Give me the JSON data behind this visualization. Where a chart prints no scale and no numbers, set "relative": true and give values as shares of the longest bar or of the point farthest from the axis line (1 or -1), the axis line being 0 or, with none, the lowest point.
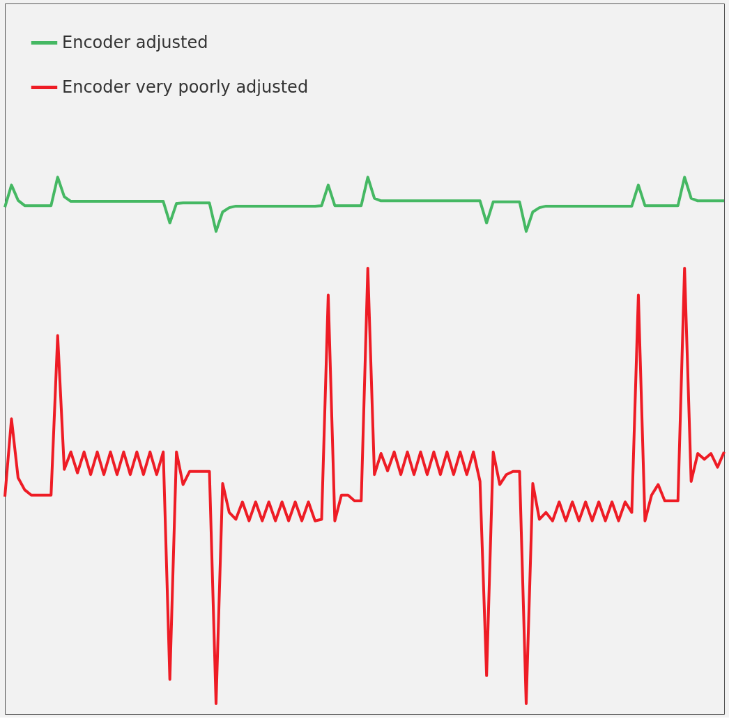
{
  "chart_data": {
    "type": "line",
    "relative": true,
    "legend": "top left",
    "categories": [
      null,
      null,
      null,
      null,
      null,
      null,
      null,
      null,
      null,
      null,
      null,
      null,
      null,
      null,
      null,
      null,
      null,
      null,
      null,
      null,
      null,
      null,
      null,
      null,
      null,
      null,
      null,
      null,
      null,
      null,
      null,
      null,
      null,
      null,
      null,
      null,
      null,
      null,
      null,
      null,
      null,
      null,
      null,
      null,
      null,
      null,
      null,
      null,
      null,
      null,
      null,
      null,
      null,
      null,
      null,
      null,
      null,
      null,
      null,
      null,
      null,
      null,
      null,
      null,
      null,
      null,
      null,
      null,
      null,
      null,
      null,
      null,
      null,
      null,
      null,
      null,
      null,
      null,
      null,
      null,
      null,
      null,
      null,
      null,
      null,
      null,
      null,
      null,
      null,
      null,
      null,
      null,
      null,
      null,
      null,
      null,
      null,
      null,
      null,
      null,
      null,
      null,
      null,
      null,
      null,
      null,
      null,
      null,
      null,
      null
    ],
    "series": [
      {
        "name": "Encoder adjusted",
        "color": "#45b863",
        "values": [
          0.943,
          0.985,
          0.956,
          0.946,
          0.946,
          0.946,
          0.946,
          0.946,
          1,
          0.963,
          0.954,
          0.954,
          0.954,
          0.954,
          0.954,
          0.954,
          0.954,
          0.954,
          0.954,
          0.954,
          0.954,
          0.954,
          0.954,
          0.954,
          0.954,
          0.913,
          0.95,
          0.951,
          0.951,
          0.951,
          0.951,
          0.951,
          0.897,
          0.934,
          0.942,
          0.945,
          0.945,
          0.945,
          0.945,
          0.945,
          0.945,
          0.945,
          0.945,
          0.945,
          0.945,
          0.945,
          0.945,
          0.945,
          0.946,
          0.985,
          0.946,
          0.946,
          0.946,
          0.946,
          0.946,
          1,
          0.96,
          0.955,
          0.955,
          0.955,
          0.955,
          0.955,
          0.955,
          0.955,
          0.955,
          0.955,
          0.955,
          0.955,
          0.955,
          0.955,
          0.955,
          0.955,
          0.955,
          0.913,
          0.953,
          0.953,
          0.953,
          0.953,
          0.953,
          0.897,
          0.934,
          0.942,
          0.945,
          0.945,
          0.945,
          0.945,
          0.945,
          0.945,
          0.945,
          0.945,
          0.945,
          0.945,
          0.945,
          0.945,
          0.945,
          0.945,
          0.985,
          0.946,
          0.946,
          0.946,
          0.946,
          0.946,
          0.946,
          1,
          0.96,
          0.955,
          0.955,
          0.955,
          0.955,
          0.955
        ]
      },
      {
        "name": "Encoder very poorly adjusted",
        "color": "#ee1c25",
        "values": [
          0.393,
          0.541,
          0.429,
          0.406,
          0.396,
          0.396,
          0.396,
          0.396,
          0.699,
          0.445,
          0.478,
          0.438,
          0.478,
          0.435,
          0.478,
          0.435,
          0.478,
          0.435,
          0.478,
          0.435,
          0.478,
          0.435,
          0.478,
          0.435,
          0.478,
          0.046,
          0.478,
          0.416,
          0.441,
          0.441,
          0.441,
          0.441,
          0,
          0.418,
          0.363,
          0.35,
          0.383,
          0.347,
          0.383,
          0.347,
          0.383,
          0.347,
          0.383,
          0.347,
          0.383,
          0.347,
          0.383,
          0.347,
          0.35,
          0.776,
          0.347,
          0.396,
          0.396,
          0.385,
          0.385,
          0.827,
          0.435,
          0.475,
          0.442,
          0.478,
          0.435,
          0.478,
          0.435,
          0.478,
          0.435,
          0.478,
          0.435,
          0.478,
          0.435,
          0.478,
          0.435,
          0.478,
          0.422,
          0.053,
          0.478,
          0.416,
          0.435,
          0.441,
          0.441,
          0,
          0.418,
          0.35,
          0.363,
          0.347,
          0.383,
          0.347,
          0.383,
          0.347,
          0.383,
          0.347,
          0.383,
          0.347,
          0.383,
          0.347,
          0.383,
          0.363,
          0.776,
          0.347,
          0.396,
          0.416,
          0.385,
          0.385,
          0.385,
          0.827,
          0.422,
          0.475,
          0.464,
          0.475,
          0.449,
          0.478
        ]
      }
    ]
  }
}
